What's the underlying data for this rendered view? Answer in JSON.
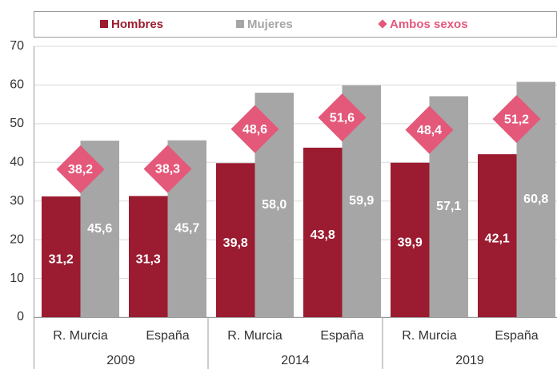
{
  "chart_data": {
    "type": "bar",
    "categories": [
      "R. Murcia",
      "España",
      "R. Murcia",
      "España",
      "R. Murcia",
      "España"
    ],
    "groups": [
      "2009",
      "2014",
      "2019"
    ],
    "series": [
      {
        "name": "Hombres",
        "color": "#9b1b30",
        "values": [
          31.2,
          31.3,
          39.8,
          43.8,
          39.9,
          42.1
        ],
        "value_labels": [
          "31,2",
          "31,3",
          "39,8",
          "43,8",
          "39,9",
          "42,1"
        ]
      },
      {
        "name": "Mujeres",
        "color": "#a6a6a6",
        "values": [
          45.6,
          45.7,
          58.0,
          59.9,
          57.1,
          60.8
        ],
        "value_labels": [
          "45,6",
          "45,7",
          "58,0",
          "59,9",
          "57,1",
          "60,8"
        ]
      },
      {
        "name": "Ambos sexos",
        "type": "scatter",
        "marker": "diamond",
        "color": "#e4587a",
        "values": [
          38.2,
          38.3,
          48.6,
          51.6,
          48.4,
          51.2
        ],
        "value_labels": [
          "38,2",
          "38,3",
          "48,6",
          "51,6",
          "48,4",
          "51,2"
        ]
      }
    ],
    "ylim": [
      0,
      70
    ],
    "yticks": [
      0,
      10,
      20,
      30,
      40,
      50,
      60,
      70
    ],
    "grid": true,
    "legend": "top"
  }
}
